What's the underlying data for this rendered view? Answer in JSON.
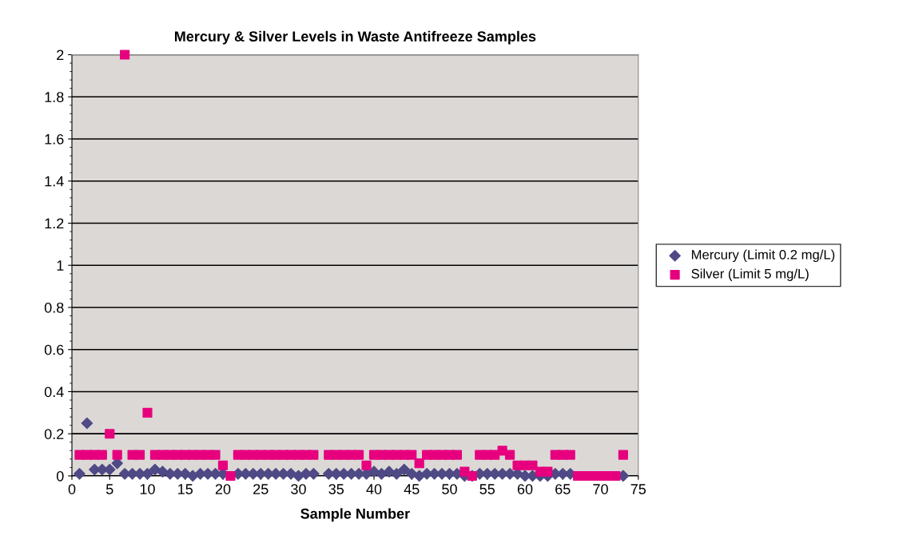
{
  "chart_data": {
    "type": "scatter",
    "title": "Mercury & Silver Levels in Waste Antifreeze Samples",
    "xlabel": "Sample Number",
    "x": [
      1,
      2,
      3,
      4,
      5,
      6,
      7,
      8,
      9,
      10,
      11,
      12,
      13,
      14,
      15,
      16,
      17,
      18,
      19,
      20,
      21,
      22,
      23,
      24,
      25,
      26,
      27,
      28,
      29,
      30,
      31,
      32,
      33,
      34,
      35,
      36,
      37,
      38,
      39,
      40,
      41,
      42,
      43,
      44,
      45,
      46,
      47,
      48,
      49,
      50,
      51,
      52,
      53,
      54,
      55,
      56,
      57,
      58,
      59,
      60,
      61,
      62,
      63,
      64,
      65,
      66,
      67,
      68,
      69,
      70,
      71,
      72,
      73
    ],
    "series": [
      {
        "name": "Mercury (Limit 0.2 mg/L)",
        "color": "#4f4a85",
        "marker": "diamond",
        "values": [
          0.01,
          0.25,
          0.03,
          0.03,
          0.03,
          0.06,
          0.01,
          0.01,
          0.01,
          0.01,
          0.03,
          0.02,
          0.01,
          0.01,
          0.01,
          0.0,
          0.01,
          0.01,
          0.01,
          0.01,
          null,
          0.01,
          0.01,
          0.01,
          0.01,
          0.01,
          0.01,
          0.01,
          0.01,
          0.0,
          0.01,
          0.01,
          null,
          0.01,
          0.01,
          0.01,
          0.01,
          0.01,
          0.01,
          0.02,
          0.01,
          0.02,
          0.01,
          0.03,
          0.01,
          0.0,
          0.01,
          0.01,
          0.01,
          0.01,
          0.01,
          0.0,
          0.0,
          0.01,
          0.01,
          0.01,
          0.01,
          0.01,
          0.01,
          0.0,
          0.0,
          0.0,
          0.0,
          0.01,
          0.01,
          0.01,
          null,
          null,
          null,
          null,
          null,
          null,
          0.0
        ]
      },
      {
        "name": "Silver (Limit 5 mg/L)",
        "color": "#e6007e",
        "marker": "square",
        "values": [
          0.1,
          0.1,
          0.1,
          0.1,
          0.2,
          0.1,
          2,
          0.1,
          0.1,
          0.3,
          0.1,
          0.1,
          0.1,
          0.1,
          0.1,
          0.1,
          0.1,
          0.1,
          0.1,
          0.05,
          0.0,
          0.1,
          0.1,
          0.1,
          0.1,
          0.1,
          0.1,
          0.1,
          0.1,
          0.1,
          0.1,
          0.1,
          null,
          0.1,
          0.1,
          0.1,
          0.1,
          0.1,
          0.05,
          0.1,
          0.1,
          0.1,
          0.1,
          0.1,
          0.1,
          0.06,
          0.1,
          0.1,
          0.1,
          0.1,
          0.1,
          0.02,
          0.0,
          0.1,
          0.1,
          0.1,
          0.12,
          0.1,
          0.05,
          0.05,
          0.05,
          0.02,
          0.02,
          0.1,
          0.1,
          0.1,
          0.0,
          0.0,
          0.0,
          0.0,
          0.0,
          0.0,
          0.1
        ]
      }
    ],
    "xlim": [
      0,
      75
    ],
    "xticks": [
      0,
      5,
      10,
      15,
      20,
      25,
      30,
      35,
      40,
      45,
      50,
      55,
      60,
      65,
      70,
      75
    ],
    "ylim": [
      0,
      2
    ],
    "yticks": [
      0,
      0.2,
      0.4,
      0.6,
      0.8,
      1,
      1.2,
      1.4,
      1.6,
      1.8,
      2
    ],
    "grid": "y",
    "legend": "right"
  }
}
